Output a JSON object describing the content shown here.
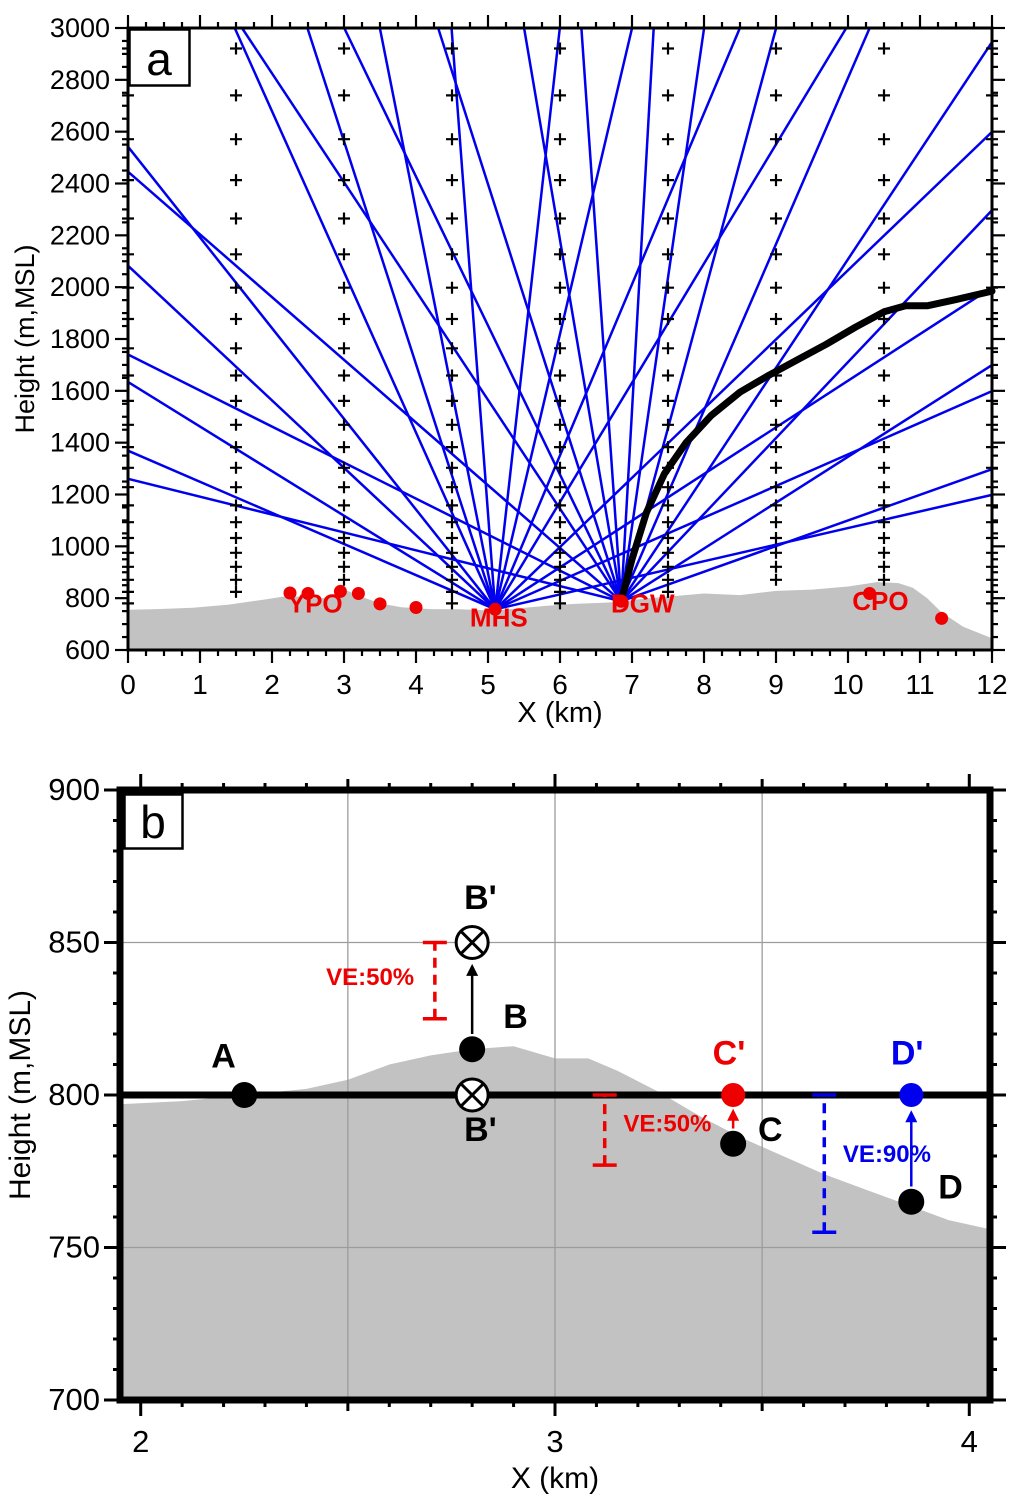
{
  "figure": {
    "background": "#ffffff",
    "panel_count": 2
  },
  "chart_data": [
    {
      "type": "line",
      "panel_label": "a",
      "xlabel": "X (km)",
      "ylabel": "Height (m,MSL)",
      "xlim": [
        0,
        12
      ],
      "ylim": [
        600,
        3000
      ],
      "xticks": [
        0,
        1,
        2,
        3,
        4,
        5,
        6,
        7,
        8,
        9,
        10,
        11,
        12
      ],
      "yticks": [
        600,
        800,
        1000,
        1200,
        1400,
        1600,
        1800,
        2000,
        2200,
        2400,
        2600,
        2800,
        3000
      ],
      "x_minor_step": 0.25,
      "y_minor_step": 50,
      "colors": {
        "beam": "#0000ee",
        "terrain": "#c2c2c2",
        "station": "#ee0000",
        "profile": "#000000"
      },
      "terrain": [
        [
          0,
          755
        ],
        [
          0.4,
          758
        ],
        [
          0.9,
          763
        ],
        [
          1.4,
          775
        ],
        [
          1.9,
          795
        ],
        [
          2.2,
          808
        ],
        [
          2.45,
          805
        ],
        [
          2.7,
          800
        ],
        [
          2.9,
          815
        ],
        [
          3.05,
          828
        ],
        [
          3.25,
          805
        ],
        [
          3.5,
          780
        ],
        [
          3.8,
          765
        ],
        [
          4.2,
          758
        ],
        [
          4.6,
          757
        ],
        [
          5.1,
          752
        ],
        [
          5.4,
          760
        ],
        [
          5.8,
          770
        ],
        [
          6.2,
          778
        ],
        [
          6.6,
          782
        ],
        [
          6.85,
          786
        ],
        [
          7.1,
          796
        ],
        [
          7.5,
          806
        ],
        [
          8,
          818
        ],
        [
          8.5,
          812
        ],
        [
          9,
          828
        ],
        [
          9.5,
          833
        ],
        [
          10,
          845
        ],
        [
          10.4,
          862
        ],
        [
          10.7,
          858
        ],
        [
          10.9,
          840
        ],
        [
          11.1,
          800
        ],
        [
          11.3,
          745
        ],
        [
          11.6,
          690
        ],
        [
          12,
          645
        ]
      ],
      "cross_columns": [
        0,
        1.5,
        3,
        4.5,
        6,
        7.5,
        9,
        10.5,
        12
      ],
      "cross_levels": [
        780,
        824,
        871,
        921,
        975,
        1032,
        1093,
        1158,
        1228,
        1303,
        1383,
        1469,
        1561,
        1659,
        1764,
        1877,
        1998,
        2127,
        2265,
        2413,
        2571,
        2740,
        2921
      ],
      "radar_beams": [
        {
          "station": "MHS",
          "x": 5.1,
          "y": 757,
          "slopes_left": [
            120,
            172,
            260,
            350,
            620,
            860,
            1400,
            3700
          ],
          "slopes_right": [
            64,
            122,
            180,
            267,
            460,
            660,
            1180,
            2500
          ]
        },
        {
          "station": "DGW",
          "x": 6.85,
          "y": 788,
          "slopes_left": [
            69,
            139,
            242,
            420,
            575,
            870,
            1640,
            4000
          ],
          "slopes_right": [
            99,
            177,
            293,
            419,
            641,
            1028,
            1921,
            4900
          ]
        }
      ],
      "profile_line": [
        [
          6.85,
          790
        ],
        [
          7.0,
          950
        ],
        [
          7.2,
          1130
        ],
        [
          7.45,
          1280
        ],
        [
          7.75,
          1400
        ],
        [
          8.1,
          1505
        ],
        [
          8.5,
          1595
        ],
        [
          8.9,
          1660
        ],
        [
          9.3,
          1720
        ],
        [
          9.7,
          1780
        ],
        [
          10.1,
          1845
        ],
        [
          10.5,
          1905
        ],
        [
          10.8,
          1928
        ],
        [
          11.1,
          1928
        ],
        [
          11.5,
          1952
        ],
        [
          12,
          1985
        ]
      ],
      "station_dots": [
        [
          2.25,
          820
        ],
        [
          2.5,
          818
        ],
        [
          2.95,
          826
        ],
        [
          3.2,
          818
        ],
        [
          3.5,
          778
        ],
        [
          4.0,
          764
        ],
        [
          5.1,
          757
        ],
        [
          6.85,
          788
        ],
        [
          10.3,
          818
        ],
        [
          11.3,
          722
        ]
      ],
      "station_labels": [
        {
          "text": "YPO",
          "x": 2.6,
          "y": 745
        },
        {
          "text": "MHS",
          "x": 5.15,
          "y": 690
        },
        {
          "text": "DGW",
          "x": 7.15,
          "y": 745
        },
        {
          "text": "CPO",
          "x": 10.45,
          "y": 755
        }
      ]
    },
    {
      "type": "scatter",
      "panel_label": "b",
      "xlabel": "X (km)",
      "ylabel": "Height (m,MSL)",
      "xlim": [
        1.95,
        4.05
      ],
      "ylim": [
        700,
        900
      ],
      "xticks": [
        2,
        3,
        4
      ],
      "yticks": [
        700,
        750,
        800,
        850,
        900
      ],
      "x_minor_step": 0.1,
      "y_minor_step": 10,
      "grid_x": [
        2.5,
        3,
        3.5
      ],
      "grid_y": [
        750,
        800,
        850
      ],
      "reference_line_y": 800,
      "colors": {
        "terrain": "#c2c2c2",
        "black": "#000000",
        "red": "#ee0000",
        "blue": "#0000ee",
        "grid": "#9c9c9c"
      },
      "terrain": [
        [
          1.95,
          797
        ],
        [
          2.1,
          798
        ],
        [
          2.25,
          800
        ],
        [
          2.4,
          802
        ],
        [
          2.5,
          805
        ],
        [
          2.6,
          810
        ],
        [
          2.7,
          813
        ],
        [
          2.8,
          815
        ],
        [
          2.9,
          816
        ],
        [
          3.0,
          812
        ],
        [
          3.08,
          812
        ],
        [
          3.15,
          808
        ],
        [
          3.25,
          801
        ],
        [
          3.35,
          793
        ],
        [
          3.45,
          786
        ],
        [
          3.55,
          780
        ],
        [
          3.65,
          774
        ],
        [
          3.75,
          769
        ],
        [
          3.85,
          764
        ],
        [
          3.95,
          759
        ],
        [
          4.05,
          756
        ]
      ],
      "points": [
        {
          "label": "A",
          "x": 2.25,
          "y": 800,
          "color": "#000000",
          "r": 13
        },
        {
          "label": "B",
          "x": 2.8,
          "y": 815,
          "color": "#000000",
          "r": 13
        },
        {
          "label": "C",
          "x": 3.43,
          "y": 784,
          "color": "#000000",
          "r": 13
        },
        {
          "label": "D",
          "x": 3.86,
          "y": 765,
          "color": "#000000",
          "r": 13
        },
        {
          "label": "C'",
          "x": 3.43,
          "y": 800,
          "color": "#ee0000",
          "r": 12
        },
        {
          "label": "D'",
          "x": 3.86,
          "y": 800,
          "color": "#0000ee",
          "r": 12
        }
      ],
      "otimes_symbols": [
        {
          "label": "B'",
          "x": 2.8,
          "y": 850
        },
        {
          "label": "B'",
          "x": 2.8,
          "y": 800
        }
      ],
      "arrows": [
        {
          "x": 2.8,
          "from": 820,
          "to": 843,
          "color": "#000000"
        },
        {
          "x": 3.43,
          "from": 789,
          "to": 795.5,
          "color": "#ee0000"
        },
        {
          "x": 3.86,
          "from": 770,
          "to": 795,
          "color": "#0000ee"
        }
      ],
      "error_bars": [
        {
          "x": 2.71,
          "y_bottom": 825,
          "y_top": 850,
          "color": "#ee0000",
          "label": "VE:50%",
          "label_x": 2.66,
          "label_y": 836,
          "label_anchor": "end"
        },
        {
          "x": 3.12,
          "y_bottom": 777,
          "y_top": 800,
          "color": "#ee0000",
          "label": "VE:50%",
          "label_x": 3.165,
          "label_y": 788,
          "label_anchor": "start"
        },
        {
          "x": 3.65,
          "y_bottom": 755,
          "y_top": 800,
          "color": "#0000ee",
          "label": "VE:90%",
          "label_x": 3.695,
          "label_y": 778,
          "label_anchor": "start"
        }
      ],
      "point_labels": [
        {
          "text": "A",
          "x": 2.2,
          "y": 809,
          "color": "#000000",
          "anchor": "middle"
        },
        {
          "text": "B",
          "x": 2.875,
          "y": 822,
          "color": "#000000",
          "anchor": "start"
        },
        {
          "text": "B'",
          "x": 2.82,
          "y": 861,
          "color": "#000000",
          "anchor": "middle"
        },
        {
          "text": "B'",
          "x": 2.82,
          "y": 785,
          "color": "#000000",
          "anchor": "middle"
        },
        {
          "text": "C",
          "x": 3.49,
          "y": 785,
          "color": "#000000",
          "anchor": "start"
        },
        {
          "text": "C'",
          "x": 3.42,
          "y": 810,
          "color": "#ee0000",
          "anchor": "middle"
        },
        {
          "text": "D",
          "x": 3.925,
          "y": 766,
          "color": "#000000",
          "anchor": "start"
        },
        {
          "text": "D'",
          "x": 3.85,
          "y": 810,
          "color": "#0000ee",
          "anchor": "middle"
        }
      ]
    }
  ]
}
